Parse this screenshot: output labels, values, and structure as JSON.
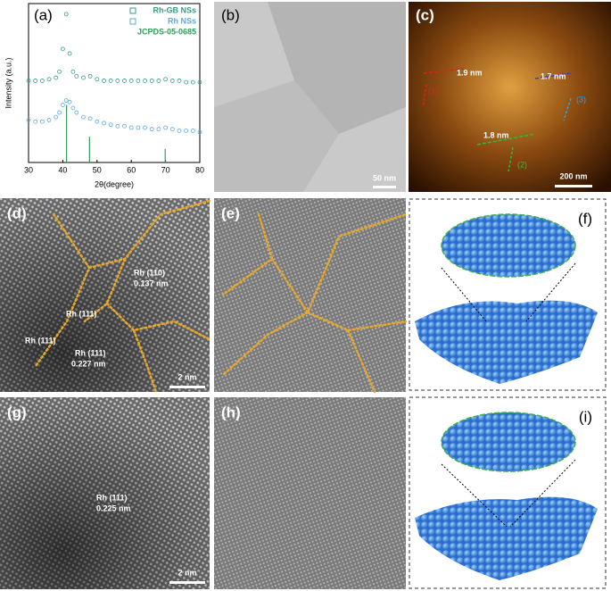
{
  "chart_data": {
    "type": "line",
    "panel": "(a)",
    "xlabel": "2θ(degree)",
    "ylabel": "Intensity (a.u.)",
    "x": [
      30,
      32,
      34,
      36,
      38,
      39,
      40,
      41,
      42,
      43,
      44,
      46,
      48,
      50,
      52,
      54,
      56,
      58,
      60,
      62,
      64,
      66,
      68,
      70,
      72,
      74,
      76,
      78,
      80
    ],
    "series": [
      {
        "name": "Rh-GB NSs",
        "color": "#3a9a8a",
        "values": [
          54,
          54,
          54,
          55,
          56,
          60,
          75,
          98,
          72,
          60,
          57,
          56,
          57,
          55,
          54,
          54,
          54,
          54,
          54,
          54,
          54,
          54,
          54,
          55,
          54,
          54,
          53,
          53,
          53
        ]
      },
      {
        "name": "Rh NSs",
        "color": "#5aa9e0",
        "values": [
          28,
          27,
          27,
          28,
          30,
          33,
          38,
          41,
          40,
          36,
          33,
          30,
          29,
          27,
          26,
          25,
          24,
          24,
          23,
          23,
          23,
          22,
          22,
          23,
          22,
          21,
          21,
          21,
          20
        ]
      }
    ],
    "reference": {
      "name": "JCPDS-05-0685",
      "color": "#2ca05a",
      "x": [
        41.1,
        47.8,
        69.9
      ],
      "values": [
        38,
        17,
        9
      ]
    },
    "xlim": [
      30,
      80
    ],
    "xticks": [
      30,
      40,
      50,
      60,
      70,
      80
    ],
    "ylim": [
      0,
      105
    ],
    "legend": "upper right"
  },
  "panels": [
    {
      "label": "(b)",
      "annotations": [
        "50 nm"
      ]
    },
    {
      "label": "(c)",
      "annotations": [
        "1.9 nm",
        "1.7 nm",
        "1.8 nm",
        "(1)",
        "(2)",
        "(3)",
        "200 nm"
      ]
    },
    {
      "label": "(d)",
      "annotations": [
        "Rh (110)",
        "0.137 nm",
        "Rh (111)",
        "Rh (111)",
        "Rh (111)",
        "0.227 nm",
        "2 nm"
      ]
    },
    {
      "label": "(e)",
      "annotations": []
    },
    {
      "label": "(f)",
      "annotations": []
    },
    {
      "label": "(g)",
      "annotations": [
        "Rh (111)",
        "0.225 nm",
        "2 nm"
      ]
    },
    {
      "label": "(h)",
      "annotations": []
    },
    {
      "label": "(i)",
      "annotations": []
    }
  ]
}
